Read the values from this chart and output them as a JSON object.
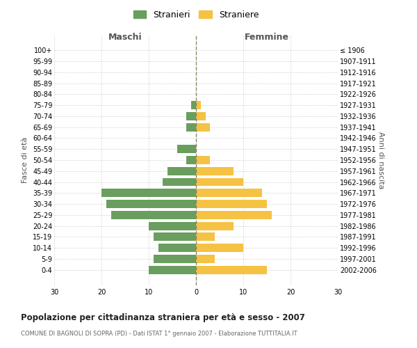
{
  "age_groups": [
    "0-4",
    "5-9",
    "10-14",
    "15-19",
    "20-24",
    "25-29",
    "30-34",
    "35-39",
    "40-44",
    "45-49",
    "50-54",
    "55-59",
    "60-64",
    "65-69",
    "70-74",
    "75-79",
    "80-84",
    "85-89",
    "90-94",
    "95-99",
    "100+"
  ],
  "birth_years": [
    "2002-2006",
    "1997-2001",
    "1992-1996",
    "1987-1991",
    "1982-1986",
    "1977-1981",
    "1972-1976",
    "1967-1971",
    "1962-1966",
    "1957-1961",
    "1952-1956",
    "1947-1951",
    "1942-1946",
    "1937-1941",
    "1932-1936",
    "1927-1931",
    "1922-1926",
    "1917-1921",
    "1912-1916",
    "1907-1911",
    "≤ 1906"
  ],
  "males": [
    10,
    9,
    8,
    9,
    10,
    18,
    19,
    20,
    7,
    6,
    2,
    4,
    0,
    2,
    2,
    1,
    0,
    0,
    0,
    0,
    0
  ],
  "females": [
    15,
    4,
    10,
    4,
    8,
    16,
    15,
    14,
    10,
    8,
    3,
    0,
    0,
    3,
    2,
    1,
    0,
    0,
    0,
    0,
    0
  ],
  "male_color": "#6a9e5e",
  "female_color": "#f5c244",
  "background_color": "#ffffff",
  "grid_color": "#cccccc",
  "title": "Popolazione per cittadinanza straniera per età e sesso - 2007",
  "subtitle": "COMUNE DI BAGNOLI DI SOPRA (PD) - Dati ISTAT 1° gennaio 2007 - Elaborazione TUTTITALIA.IT",
  "xlabel_left": "Maschi",
  "xlabel_right": "Femmine",
  "ylabel_left": "Fasce di età",
  "ylabel_right": "Anni di nascita",
  "legend_stranieri": "Stranieri",
  "legend_straniere": "Straniere",
  "xlim": 30
}
